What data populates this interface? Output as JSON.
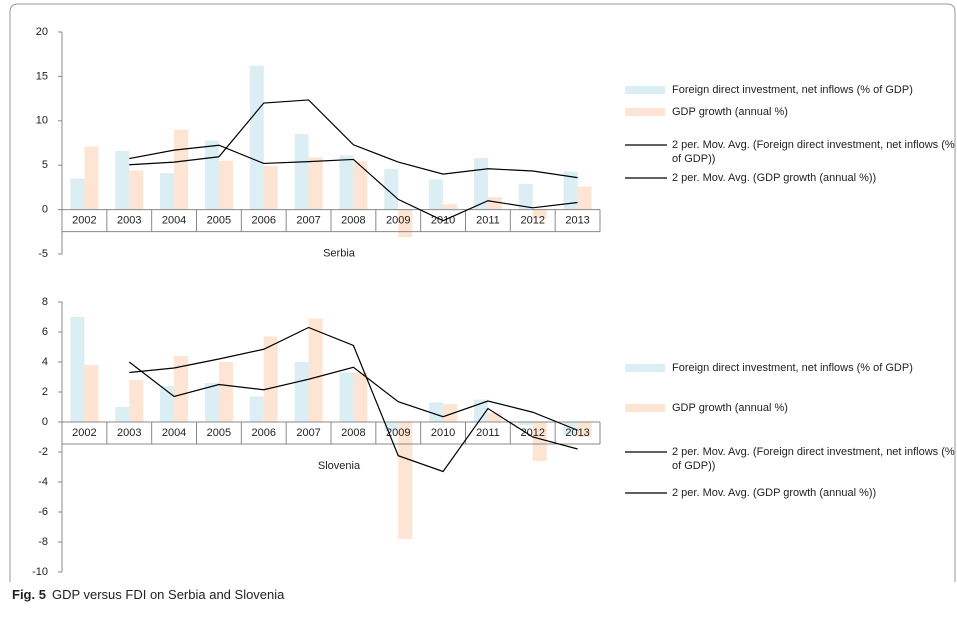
{
  "chart_data": [
    {
      "type": "bar",
      "x_label": "Serbia",
      "categories": [
        "2002",
        "2003",
        "2004",
        "2005",
        "2006",
        "2007",
        "2008",
        "2009",
        "2010",
        "2011",
        "2012",
        "2013"
      ],
      "ylim": [
        -5,
        20
      ],
      "yticks": [
        -5,
        0,
        5,
        10,
        15,
        20
      ],
      "series": [
        {
          "name": "Foreign direct investment, net inflows (% of GDP)",
          "type": "bar",
          "color": "#dbeef4",
          "values": [
            3.5,
            6.6,
            4.1,
            7.8,
            16.2,
            8.5,
            6.1,
            4.6,
            3.4,
            5.8,
            2.9,
            4.3
          ]
        },
        {
          "name": "GDP growth (annual %)",
          "type": "bar",
          "color": "#fde4d3",
          "values": [
            7.1,
            4.4,
            9.0,
            5.5,
            4.9,
            5.9,
            5.4,
            -3.1,
            0.6,
            1.4,
            -1.0,
            2.6
          ]
        },
        {
          "name": "2 per. Mov. Avg. (Foreign direct investment, net inflows (% of GDP))",
          "type": "line",
          "color": "#000000",
          "values": [
            null,
            5.05,
            5.35,
            5.95,
            12.0,
            12.35,
            7.3,
            5.35,
            4.0,
            4.6,
            4.35,
            3.6
          ]
        },
        {
          "name": "2 per. Mov. Avg. (GDP growth (annual %))",
          "type": "line",
          "color": "#000000",
          "values": [
            null,
            5.75,
            6.7,
            7.25,
            5.2,
            5.4,
            5.65,
            1.15,
            -1.25,
            1.0,
            0.2,
            0.8
          ]
        }
      ]
    },
    {
      "type": "bar",
      "x_label": "Slovenia",
      "categories": [
        "2002",
        "2003",
        "2004",
        "2005",
        "2006",
        "2007",
        "2008",
        "2009",
        "2010",
        "2011",
        "2012",
        "2013"
      ],
      "ylim": [
        -10,
        8
      ],
      "yticks": [
        -10,
        -8,
        -6,
        -4,
        -2,
        0,
        2,
        4,
        6,
        8
      ],
      "series": [
        {
          "name": "Foreign direct investment, net inflows (% of GDP)",
          "type": "bar",
          "color": "#dbeef4",
          "values": [
            7.0,
            1.0,
            2.4,
            2.6,
            1.7,
            4.0,
            3.3,
            -0.6,
            1.3,
            1.5,
            -0.2,
            -0.9
          ]
        },
        {
          "name": "GDP growth (annual %)",
          "type": "bar",
          "color": "#fde4d3",
          "values": [
            3.8,
            2.8,
            4.4,
            4.0,
            5.7,
            6.9,
            3.3,
            -7.8,
            1.2,
            0.6,
            -2.6,
            -1.0
          ]
        },
        {
          "name": "2 per. Mov. Avg. (Foreign direct investment, net inflows (% of GDP))",
          "type": "line",
          "color": "#000000",
          "values": [
            null,
            4.0,
            1.7,
            2.5,
            2.15,
            2.85,
            3.65,
            1.35,
            0.35,
            1.4,
            0.65,
            -0.55
          ]
        },
        {
          "name": "2 per. Mov. Avg. (GDP growth (annual %))",
          "type": "line",
          "color": "#000000",
          "values": [
            null,
            3.3,
            3.6,
            4.2,
            4.85,
            6.3,
            5.1,
            -2.25,
            -3.3,
            0.9,
            -1.0,
            -1.8
          ]
        }
      ]
    }
  ],
  "caption": {
    "label": "Fig. 5",
    "text": "GDP versus FDI on Serbia and Slovenia"
  }
}
